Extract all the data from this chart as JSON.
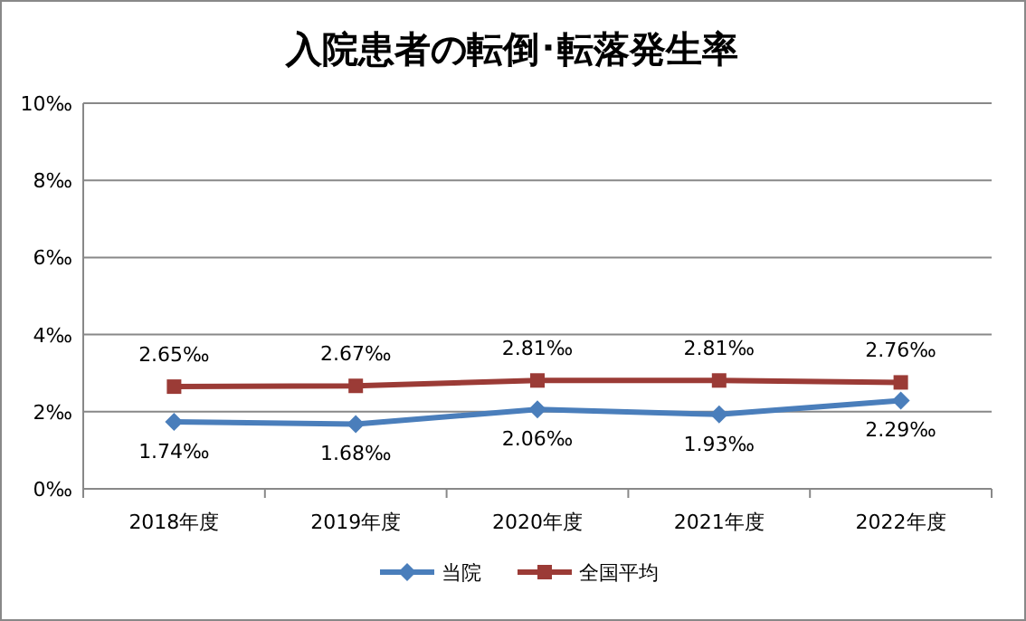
{
  "chart_data": {
    "type": "line",
    "title": "入院患者の転倒･転落発生率",
    "categories": [
      "2018年度",
      "2019年度",
      "2020年度",
      "2021年度",
      "2022年度"
    ],
    "series": [
      {
        "name": "当院",
        "color": "#4a7ebb",
        "marker": "diamond",
        "values": [
          1.74,
          1.68,
          2.06,
          1.93,
          2.29
        ],
        "value_labels": [
          "1.74‰",
          "1.68‰",
          "2.06‰",
          "1.93‰",
          "2.29‰"
        ]
      },
      {
        "name": "全国平均",
        "color": "#9b3b36",
        "marker": "square",
        "values": [
          2.65,
          2.67,
          2.81,
          2.81,
          2.76
        ],
        "value_labels": [
          "2.65‰",
          "2.67‰",
          "2.81‰",
          "2.81‰",
          "2.76‰"
        ]
      }
    ],
    "ylim": [
      0,
      10
    ],
    "yticks": [
      {
        "value": 0,
        "label": "0‰"
      },
      {
        "value": 2,
        "label": "2‰"
      },
      {
        "value": 4,
        "label": "4‰"
      },
      {
        "value": 6,
        "label": "6‰"
      },
      {
        "value": 8,
        "label": "8‰"
      },
      {
        "value": 10,
        "label": "10‰"
      }
    ],
    "grid": "y",
    "legend": "bottom"
  }
}
